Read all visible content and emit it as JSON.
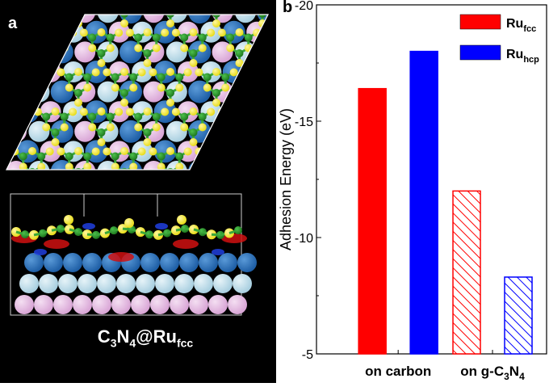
{
  "panel_a": {
    "label": "a",
    "caption": {
      "main": "C",
      "sub1": "3",
      "mid1": "N",
      "sub2": "4",
      "mid2": "@Ru",
      "sub3": "fcc"
    }
  },
  "panel_b": {
    "label": "b"
  },
  "chart_data": {
    "type": "bar",
    "title": "",
    "ylabel": "Adhesion Energy (eV)",
    "ylim": [
      -5,
      -20
    ],
    "y_axis_inverted": true,
    "yticks": [
      "-20",
      "-15",
      "-10",
      "-5"
    ],
    "categories": [
      "on carbon",
      "on g-C3N4"
    ],
    "category_labels": [
      {
        "text": "on carbon"
      },
      {
        "pre": "on g-C",
        "sub1": "3",
        "mid": "N",
        "sub2": "4"
      }
    ],
    "series": [
      {
        "name": "Ru_fcc",
        "values": [
          -16.4,
          -12.0
        ],
        "color": "#ff0000"
      },
      {
        "name": "Ru_hcp",
        "values": [
          -18.0,
          -8.3
        ],
        "color": "#0000ff"
      }
    ],
    "bar_fill": [
      "solid",
      "hatched"
    ],
    "legend": {
      "placement": "top-right",
      "entries": [
        {
          "base": "Ru",
          "sub": "fcc",
          "color": "#ff0000"
        },
        {
          "base": "Ru",
          "sub": "hcp",
          "color": "#0000ff"
        }
      ]
    }
  },
  "colors": {
    "ru_top": "#1f5fa6",
    "ru_mid": "#a9cfe0",
    "ru_bottom": "#d9a6d6",
    "carbon": "#1f7a1f",
    "nitrogen": "#e8dc1a",
    "bond": "#3aa83a"
  }
}
